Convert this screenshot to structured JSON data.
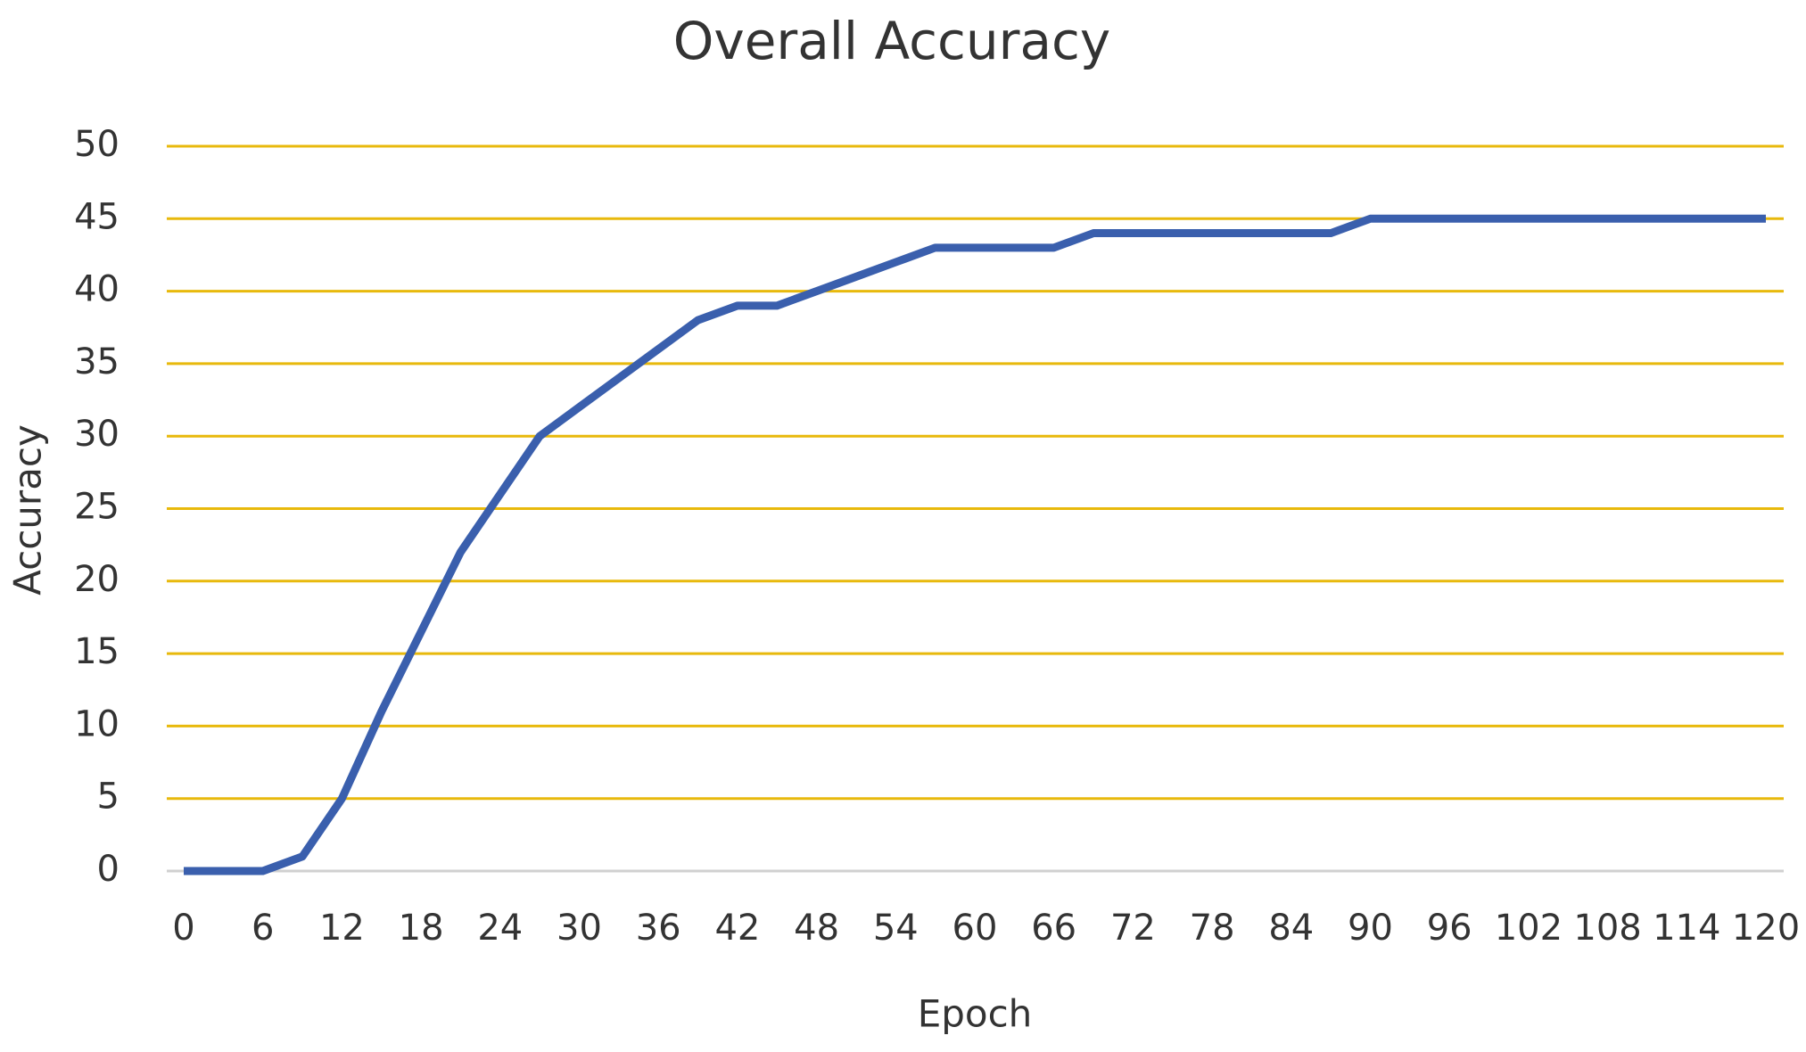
{
  "chart_data": {
    "type": "line",
    "title": "Overall Accuracy",
    "x_label": "Epoch",
    "y_label": "Accuracy",
    "x": [
      0,
      3,
      6,
      9,
      12,
      15,
      18,
      21,
      24,
      27,
      30,
      33,
      36,
      39,
      42,
      45,
      48,
      51,
      54,
      57,
      60,
      63,
      66,
      69,
      72,
      75,
      78,
      81,
      84,
      87,
      90,
      93,
      96,
      99,
      102,
      105,
      108,
      111,
      114,
      117,
      120
    ],
    "series": [
      {
        "name": "Overall Accuracy",
        "color": "#3a5fad",
        "values": [
          0,
          0,
          0,
          1,
          5,
          11,
          16.5,
          22,
          26,
          30,
          32,
          34,
          36,
          38,
          39,
          39,
          40,
          41,
          42,
          43,
          43,
          43,
          43,
          44,
          44,
          44,
          44,
          44,
          44,
          44,
          45,
          45,
          45,
          45,
          45,
          45,
          45,
          45,
          45,
          45,
          45
        ]
      }
    ],
    "xlim": [
      0,
      120
    ],
    "xticks": [
      0,
      6,
      12,
      18,
      24,
      30,
      36,
      42,
      48,
      54,
      60,
      66,
      72,
      78,
      84,
      90,
      96,
      102,
      108,
      114,
      120
    ],
    "ylim": [
      0,
      50
    ],
    "yticks": [
      0,
      5,
      10,
      15,
      20,
      25,
      30,
      35,
      40,
      45,
      50
    ],
    "grid": true,
    "grid_color": "#e8b90c"
  }
}
